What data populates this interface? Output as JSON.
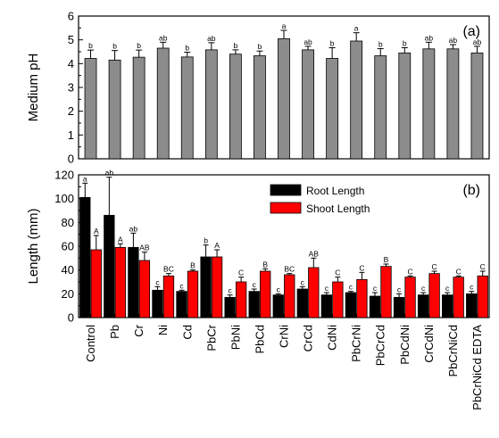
{
  "chart_data": [
    {
      "type": "bar",
      "panel_label": "(a)",
      "ylabel": "Medium pH",
      "ylim": [
        0,
        6
      ],
      "yticks": [
        0,
        1,
        2,
        3,
        4,
        5,
        6
      ],
      "categories": [
        "Control",
        "Pb",
        "Cr",
        "Ni",
        "Cd",
        "PbCr",
        "PbNi",
        "PbCd",
        "CrNi",
        "CrCd",
        "CdNi",
        "PbCrNi",
        "PbCrCd",
        "PbCdNi",
        "CrCdNi",
        "PbCrNiCd",
        "PbCrNiCd EDTA"
      ],
      "colors": {
        "bar": "#8c8c8c"
      },
      "series": [
        {
          "values": [
            4.22,
            4.15,
            4.27,
            4.65,
            4.28,
            4.58,
            4.4,
            4.33,
            5.05,
            4.58,
            4.22,
            4.95,
            4.33,
            4.45,
            4.62,
            4.62,
            4.45
          ],
          "errors": [
            0.35,
            0.4,
            0.3,
            0.25,
            0.2,
            0.3,
            0.18,
            0.2,
            0.35,
            0.15,
            0.45,
            0.35,
            0.3,
            0.22,
            0.28,
            0.18,
            0.28
          ],
          "significance": [
            "b",
            "b",
            "b",
            "ab",
            "b",
            "ab",
            "b",
            "b",
            "a",
            "ab",
            "b",
            "a",
            "b",
            "b",
            "ab",
            "ab",
            "ab"
          ]
        }
      ]
    },
    {
      "type": "bar",
      "panel_label": "(b)",
      "ylabel": "Length (mm)",
      "ylim": [
        0,
        120
      ],
      "yticks": [
        0,
        20,
        40,
        60,
        80,
        100,
        120
      ],
      "categories": [
        "Control",
        "Pb",
        "Cr",
        "Ni",
        "Cd",
        "PbCr",
        "PbNi",
        "PbCd",
        "CrNi",
        "CrCd",
        "CdNi",
        "PbCrNi",
        "PbCrCd",
        "PbCdNi",
        "CrCdNi",
        "PbCrNiCd",
        "PbCrNiCd EDTA"
      ],
      "legend": {
        "position": "top-center"
      },
      "series": [
        {
          "name": "Root Length",
          "color": "#000000",
          "values": [
            101,
            86,
            59,
            23,
            22,
            51,
            17,
            22,
            19,
            24,
            19,
            21,
            18,
            17,
            19,
            19,
            20
          ],
          "errors": [
            12,
            32,
            12,
            3,
            1,
            10,
            2,
            2,
            1,
            2,
            2,
            1,
            3,
            3,
            2,
            2,
            2
          ],
          "significance": [
            "a",
            "ab",
            "ab",
            "c",
            "c",
            "b",
            "c",
            "c",
            "c",
            "c",
            "c",
            "c",
            "c",
            "c",
            "c",
            "c",
            "c"
          ]
        },
        {
          "name": "Shoot Length",
          "color": "#ff0000",
          "values": [
            57,
            59,
            48,
            35,
            39,
            51,
            30,
            39,
            36,
            42,
            30,
            32,
            43,
            34,
            37,
            34,
            35
          ],
          "errors": [
            12,
            3,
            7,
            2,
            1,
            6,
            4,
            2,
            1,
            8,
            4,
            6,
            2,
            1,
            2,
            1,
            4
          ],
          "significance": [
            "A",
            "A",
            "AB",
            "BC",
            "B",
            "A",
            "C",
            "B",
            "BC",
            "AB",
            "C",
            "C",
            "B",
            "C",
            "C",
            "C",
            "C"
          ]
        }
      ]
    }
  ]
}
